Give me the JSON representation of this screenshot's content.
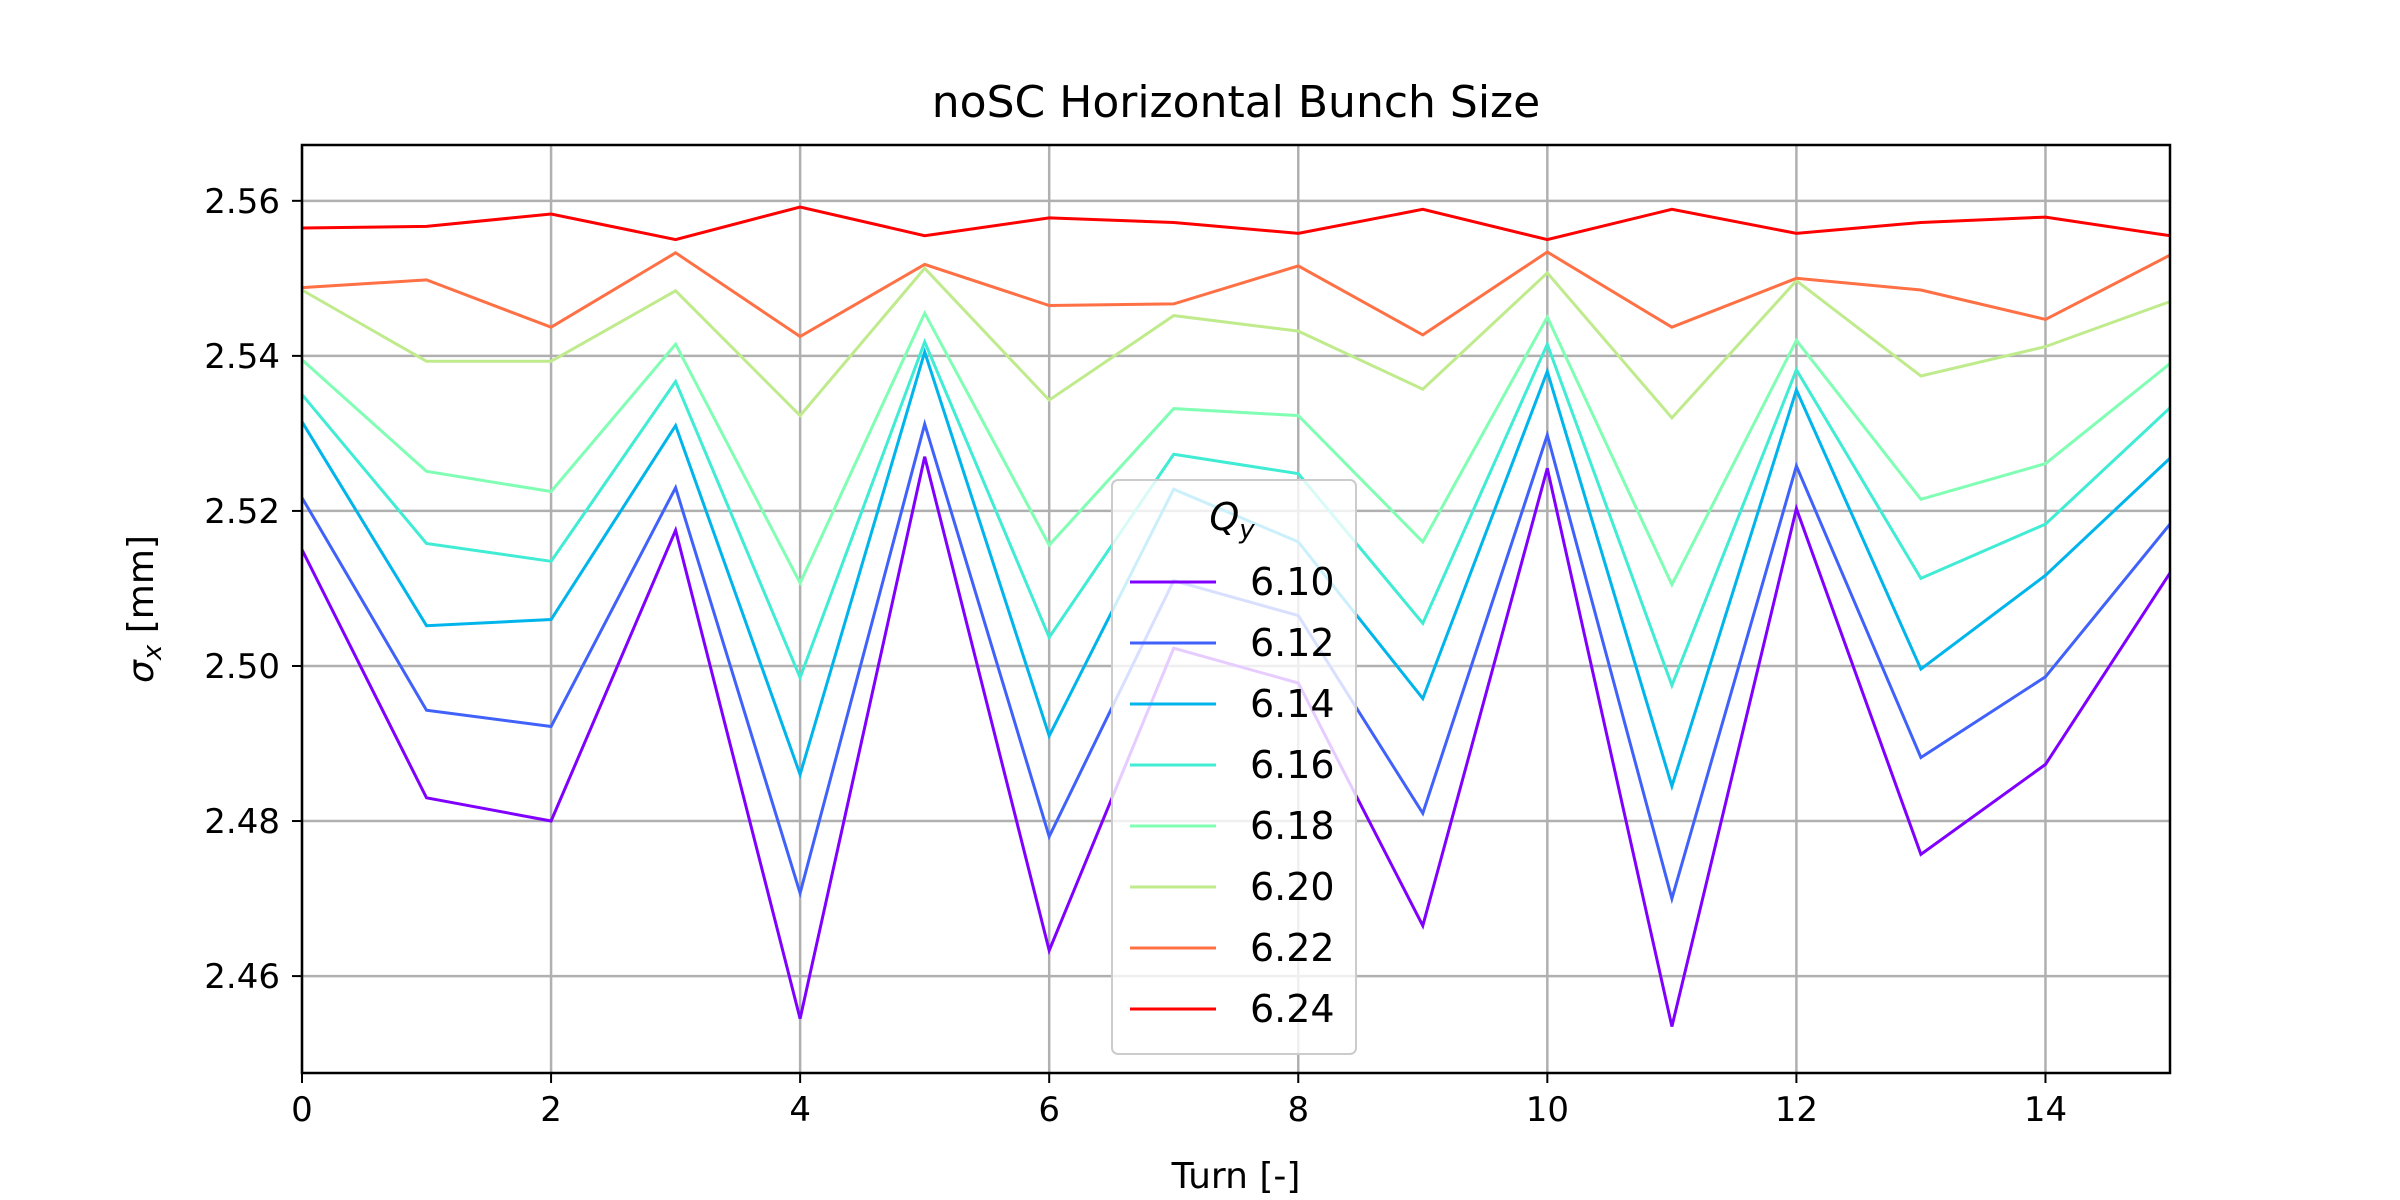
{
  "chart_data": {
    "type": "line",
    "title": "noSC Horizontal Bunch Size",
    "xlabel": "Turn [-]",
    "ylabel_symbol": "σ",
    "ylabel_subscript": "x",
    "ylabel_unit": " [mm]",
    "xlim": [
      0,
      15
    ],
    "ylim": [
      2.4475,
      2.5672
    ],
    "xticks": [
      "0",
      "2",
      "4",
      "6",
      "8",
      "10",
      "12",
      "14"
    ],
    "yticks": [
      "2.46",
      "2.48",
      "2.50",
      "2.52",
      "2.54",
      "2.56"
    ],
    "grid": true,
    "legend": {
      "title_symbol": "Q",
      "title_subscript": "y",
      "placement": "center-bottom"
    },
    "x": [
      0,
      1,
      2,
      3,
      4,
      5,
      6,
      7,
      8,
      9,
      10,
      11,
      12,
      13,
      14,
      15
    ],
    "series": [
      {
        "name": "6.10",
        "color": "#8000ff",
        "values": [
          2.515,
          2.483,
          2.48,
          2.5175,
          2.4545,
          2.527,
          2.4633,
          2.5023,
          2.4978,
          2.4665,
          2.5255,
          2.4535,
          2.5203,
          2.4757,
          2.4873,
          2.512
        ]
      },
      {
        "name": "6.12",
        "color": "#4062fa",
        "values": [
          2.5217,
          2.4943,
          2.4922,
          2.523,
          2.4707,
          2.5312,
          2.478,
          2.511,
          2.5065,
          2.481,
          2.5298,
          2.47,
          2.5258,
          2.4882,
          2.4986,
          2.5183
        ]
      },
      {
        "name": "6.14",
        "color": "#00b5eb",
        "values": [
          2.5315,
          2.5052,
          2.506,
          2.531,
          2.486,
          2.5405,
          2.491,
          2.5228,
          2.516,
          2.4958,
          2.538,
          2.4845,
          2.5356,
          2.4996,
          2.5117,
          2.5268
        ]
      },
      {
        "name": "6.16",
        "color": "#40ecd4",
        "values": [
          2.535,
          2.5158,
          2.5135,
          2.5367,
          2.4985,
          2.5418,
          2.5037,
          2.5273,
          2.5248,
          2.5055,
          2.5415,
          2.4975,
          2.5382,
          2.5113,
          2.5183,
          2.5333
        ]
      },
      {
        "name": "6.18",
        "color": "#80ffb4",
        "values": [
          2.5395,
          2.5251,
          2.5225,
          2.5415,
          2.5107,
          2.5455,
          2.5156,
          2.5332,
          2.5323,
          2.516,
          2.545,
          2.5105,
          2.542,
          2.5215,
          2.5261,
          2.539
        ]
      },
      {
        "name": "6.20",
        "color": "#c0eb8d",
        "values": [
          2.5485,
          2.5393,
          2.5393,
          2.5484,
          2.5323,
          2.5513,
          2.5343,
          2.5452,
          2.5432,
          2.5357,
          2.5507,
          2.532,
          2.5497,
          2.5374,
          2.5412,
          2.547
        ]
      },
      {
        "name": "6.22",
        "color": "#ff7045",
        "values": [
          2.5488,
          2.5498,
          2.5437,
          2.5533,
          2.5425,
          2.5518,
          2.5465,
          2.5467,
          2.5516,
          2.5427,
          2.5534,
          2.5437,
          2.55,
          2.5485,
          2.5447,
          2.553
        ]
      },
      {
        "name": "6.24",
        "color": "#ff0000",
        "values": [
          2.5565,
          2.5567,
          2.5583,
          2.555,
          2.5592,
          2.5555,
          2.5578,
          2.5572,
          2.5558,
          2.5589,
          2.555,
          2.5589,
          2.5558,
          2.5572,
          2.5579,
          2.5555
        ]
      }
    ]
  }
}
